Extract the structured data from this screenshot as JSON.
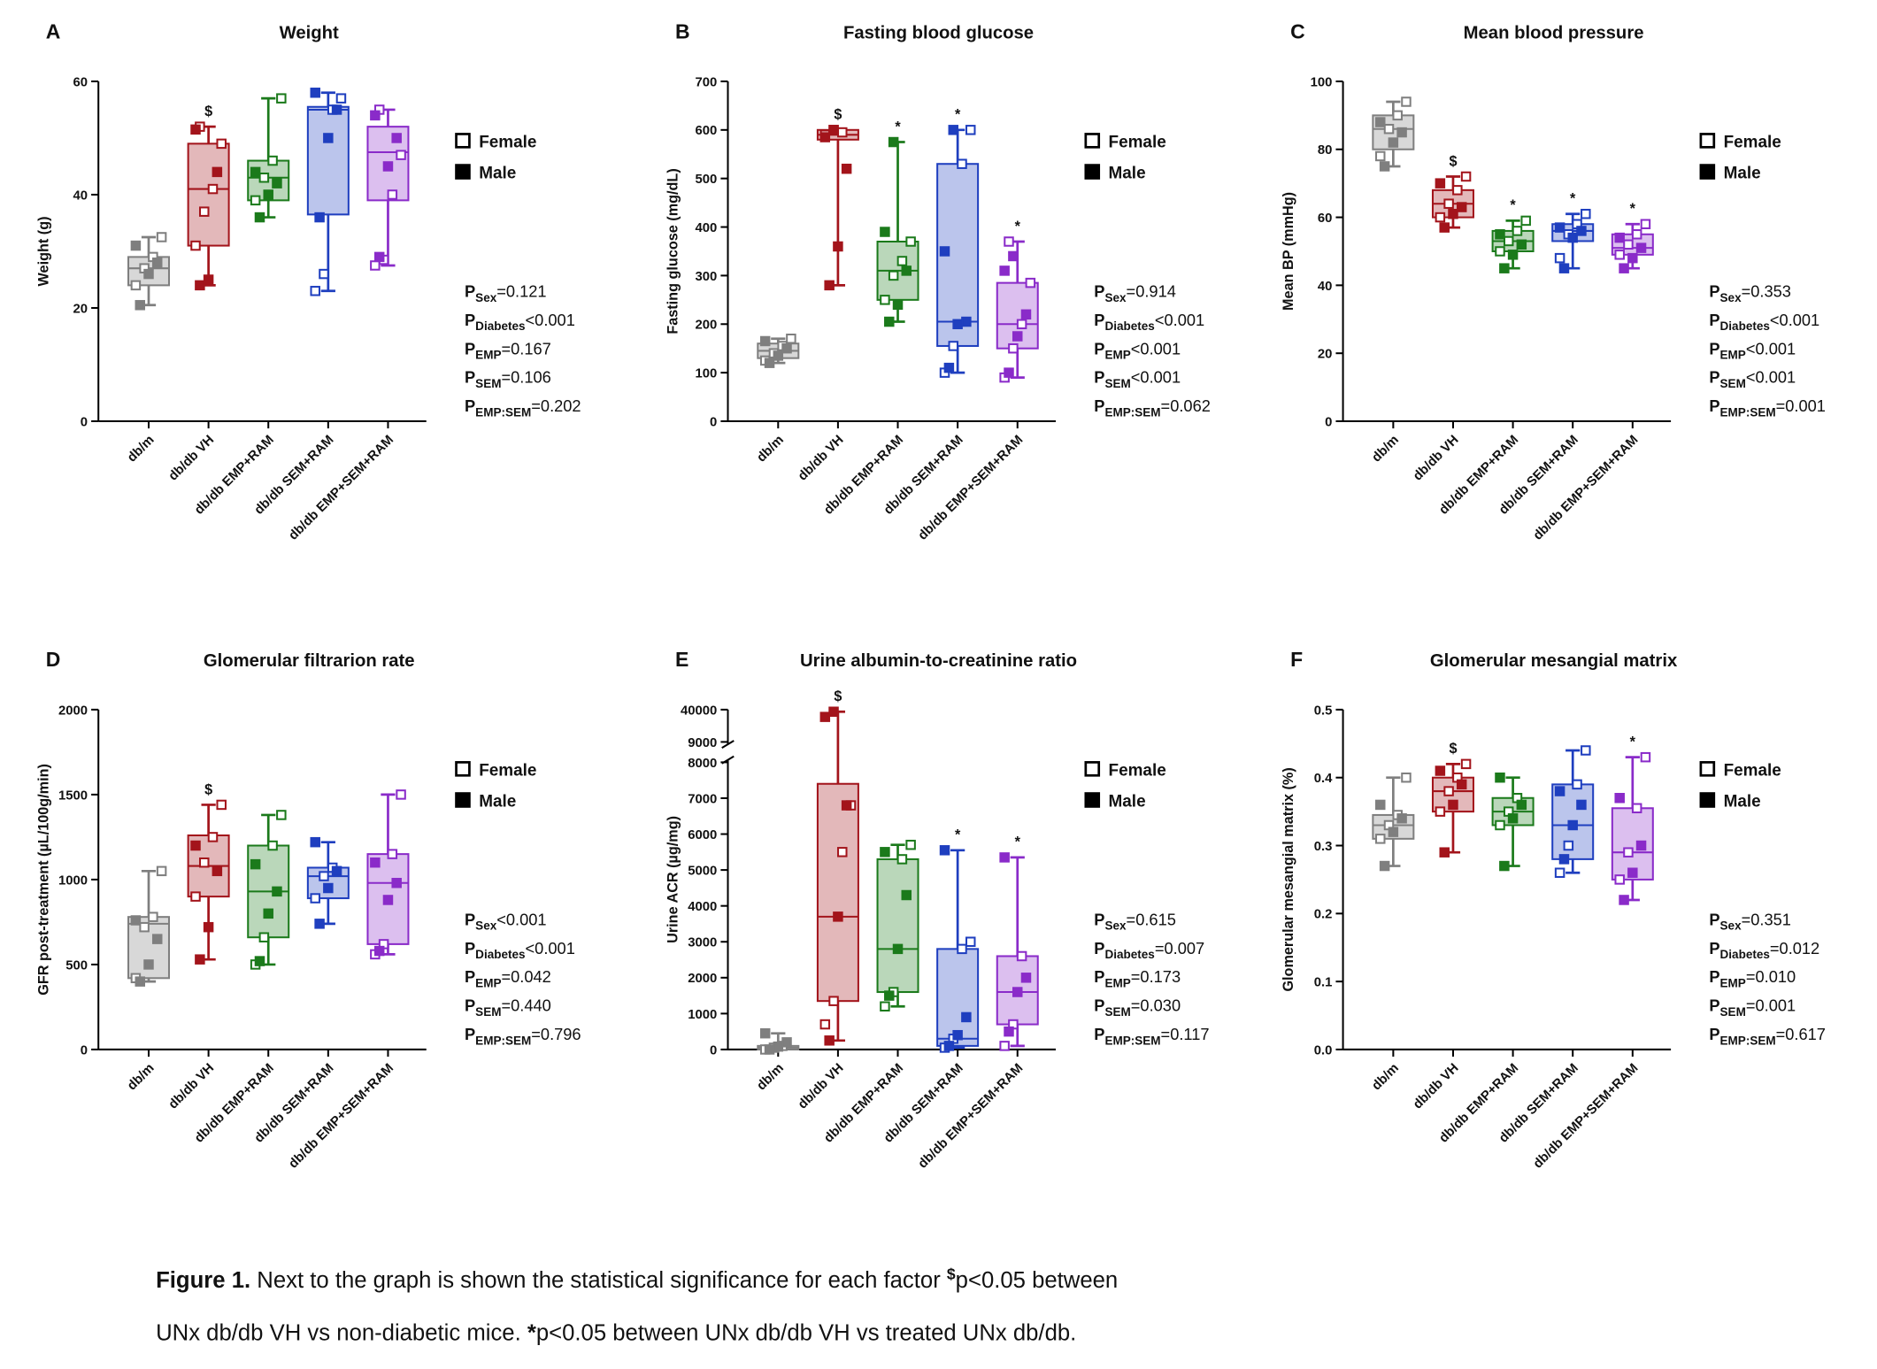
{
  "chart_data": [
    {
      "type": "box",
      "letter": "A",
      "title": "Weight",
      "ylabel": "Weight (g)",
      "ylim": [
        0,
        60
      ],
      "yticks": [
        0,
        20,
        40,
        60
      ],
      "categories": [
        "db/m",
        "db/db VH",
        "db/db EMP+RAM",
        "db/db SEM+RAM",
        "db/db EMP+SEM+RAM"
      ],
      "colors": [
        "#7f7f7f",
        "#a3141b",
        "#1b7a1b",
        "#1f3fbf",
        "#8a2bc9"
      ],
      "boxes": [
        {
          "min": 20.5,
          "q1": 24,
          "median": 27,
          "q3": 29,
          "max": 32.5
        },
        {
          "min": 24,
          "q1": 31,
          "median": 41,
          "q3": 49,
          "max": 52
        },
        {
          "min": 36,
          "q1": 39,
          "median": 43,
          "q3": 46,
          "max": 57
        },
        {
          "min": 23,
          "q1": 36.5,
          "median": 55,
          "q3": 55.5,
          "max": 58
        },
        {
          "min": 27.5,
          "q1": 39,
          "median": 47.5,
          "q3": 52,
          "max": 55
        }
      ],
      "female": [
        [
          24,
          27,
          29,
          32.5
        ],
        [
          31,
          37,
          41,
          49,
          52
        ],
        [
          39,
          43,
          46,
          57
        ],
        [
          23,
          26,
          55,
          57
        ],
        [
          27.5,
          28.5,
          40,
          47,
          55
        ]
      ],
      "male": [
        [
          20.5,
          26,
          28,
          31
        ],
        [
          24,
          25,
          44,
          51.5
        ],
        [
          36,
          40,
          42,
          44
        ],
        [
          36,
          50,
          55,
          58
        ],
        [
          29,
          45,
          50,
          54
        ]
      ],
      "markers": [
        null,
        "$",
        null,
        null,
        null
      ],
      "legend": [
        "Female",
        "Male"
      ],
      "stats": [
        {
          "factor": "Sex",
          "value": "=0.121"
        },
        {
          "factor": "Diabetes",
          "value": "<0.001"
        },
        {
          "factor": "EMP",
          "value": "=0.167"
        },
        {
          "factor": "SEM",
          "value": "=0.106"
        },
        {
          "factor": "EMP:SEM",
          "value": "=0.202"
        }
      ]
    },
    {
      "type": "box",
      "letter": "B",
      "title": "Fasting blood glucose",
      "ylabel": "Fasting glucose (mg/dL)",
      "ylim": [
        0,
        700
      ],
      "yticks": [
        0,
        100,
        200,
        300,
        400,
        500,
        600,
        700
      ],
      "categories": [
        "db/m",
        "db/db VH",
        "db/db EMP+RAM",
        "db/db SEM+RAM",
        "db/db EMP+SEM+RAM"
      ],
      "colors": [
        "#7f7f7f",
        "#a3141b",
        "#1b7a1b",
        "#1f3fbf",
        "#8a2bc9"
      ],
      "boxes": [
        {
          "min": 120,
          "q1": 130,
          "median": 145,
          "q3": 160,
          "max": 170
        },
        {
          "min": 280,
          "q1": 580,
          "median": 590,
          "q3": 600,
          "max": 600
        },
        {
          "min": 205,
          "q1": 250,
          "median": 310,
          "q3": 370,
          "max": 575
        },
        {
          "min": 100,
          "q1": 155,
          "median": 205,
          "q3": 530,
          "max": 600
        },
        {
          "min": 90,
          "q1": 150,
          "median": 200,
          "q3": 285,
          "max": 370
        }
      ],
      "female": [
        [
          125,
          140,
          155,
          170
        ],
        [
          590,
          600,
          595
        ],
        [
          250,
          300,
          330,
          370
        ],
        [
          100,
          155,
          530,
          600
        ],
        [
          90,
          150,
          200,
          285,
          370
        ]
      ],
      "male": [
        [
          120,
          135,
          150,
          165
        ],
        [
          280,
          360,
          520,
          585,
          600
        ],
        [
          205,
          240,
          310,
          390,
          575
        ],
        [
          110,
          200,
          205,
          350,
          600
        ],
        [
          100,
          175,
          220,
          310,
          340
        ]
      ],
      "markers": [
        null,
        "$",
        "*",
        "*",
        "*"
      ],
      "legend": [
        "Female",
        "Male"
      ],
      "stats": [
        {
          "factor": "Sex",
          "value": "=0.914"
        },
        {
          "factor": "Diabetes",
          "value": "<0.001"
        },
        {
          "factor": "EMP",
          "value": "<0.001"
        },
        {
          "factor": "SEM",
          "value": "<0.001"
        },
        {
          "factor": "EMP:SEM",
          "value": "=0.062"
        }
      ]
    },
    {
      "type": "box",
      "letter": "C",
      "title": "Mean blood pressure",
      "ylabel": "Mean BP (mmHg)",
      "ylim": [
        0,
        100
      ],
      "yticks": [
        0,
        20,
        40,
        60,
        80,
        100
      ],
      "categories": [
        "db/m",
        "db/db VH",
        "db/db EMP+RAM",
        "db/db SEM+RAM",
        "db/db EMP+SEM+RAM"
      ],
      "colors": [
        "#7f7f7f",
        "#a3141b",
        "#1b7a1b",
        "#1f3fbf",
        "#8a2bc9"
      ],
      "boxes": [
        {
          "min": 75,
          "q1": 80,
          "median": 86,
          "q3": 90,
          "max": 94
        },
        {
          "min": 57,
          "q1": 60,
          "median": 64,
          "q3": 68,
          "max": 72
        },
        {
          "min": 45,
          "q1": 50,
          "median": 53,
          "q3": 56,
          "max": 59
        },
        {
          "min": 45,
          "q1": 53,
          "median": 56,
          "q3": 58,
          "max": 61
        },
        {
          "min": 45,
          "q1": 49,
          "median": 51,
          "q3": 55,
          "max": 58
        }
      ],
      "female": [
        [
          78,
          86,
          90,
          94
        ],
        [
          60,
          64,
          68,
          72
        ],
        [
          50,
          53,
          56,
          59
        ],
        [
          48,
          55,
          58,
          61
        ],
        [
          49,
          52,
          55,
          58
        ]
      ],
      "male": [
        [
          75,
          82,
          85,
          88
        ],
        [
          57,
          61,
          63,
          70
        ],
        [
          45,
          49,
          52,
          55
        ],
        [
          45,
          54,
          56,
          57
        ],
        [
          45,
          48,
          51,
          54
        ]
      ],
      "markers": [
        null,
        "$",
        "*",
        "*",
        "*"
      ],
      "legend": [
        "Female",
        "Male"
      ],
      "stats": [
        {
          "factor": "Sex",
          "value": "=0.353"
        },
        {
          "factor": "Diabetes",
          "value": "<0.001"
        },
        {
          "factor": "EMP",
          "value": "<0.001"
        },
        {
          "factor": "SEM",
          "value": "<0.001"
        },
        {
          "factor": "EMP:SEM",
          "value": "=0.001"
        }
      ]
    },
    {
      "type": "box",
      "letter": "D",
      "title": "Glomerular filtrarion rate",
      "ylabel": "GFR post-treatment (µL/100g/min)",
      "ylim": [
        0,
        2000
      ],
      "yticks": [
        0,
        500,
        1000,
        1500,
        2000
      ],
      "categories": [
        "db/m",
        "db/db VH",
        "db/db EMP+RAM",
        "db/db SEM+RAM",
        "db/db EMP+SEM+RAM"
      ],
      "colors": [
        "#7f7f7f",
        "#a3141b",
        "#1b7a1b",
        "#1f3fbf",
        "#8a2bc9"
      ],
      "boxes": [
        {
          "min": 400,
          "q1": 420,
          "median": 740,
          "q3": 780,
          "max": 1050
        },
        {
          "min": 530,
          "q1": 900,
          "median": 1080,
          "q3": 1260,
          "max": 1440
        },
        {
          "min": 500,
          "q1": 660,
          "median": 930,
          "q3": 1200,
          "max": 1380
        },
        {
          "min": 740,
          "q1": 890,
          "median": 1020,
          "q3": 1070,
          "max": 1220
        },
        {
          "min": 560,
          "q1": 620,
          "median": 980,
          "q3": 1150,
          "max": 1500
        }
      ],
      "female": [
        [
          420,
          720,
          780,
          1050
        ],
        [
          900,
          1100,
          1250,
          1440
        ],
        [
          500,
          660,
          1200,
          1380
        ],
        [
          890,
          1020,
          1070
        ],
        [
          560,
          620,
          1150,
          1500
        ]
      ],
      "male": [
        [
          400,
          500,
          650,
          760
        ],
        [
          530,
          720,
          1050,
          1200
        ],
        [
          520,
          800,
          930,
          1090
        ],
        [
          740,
          950,
          1050,
          1220
        ],
        [
          580,
          880,
          980,
          1100
        ]
      ],
      "markers": [
        null,
        "$",
        null,
        null,
        null
      ],
      "legend": [
        "Female",
        "Male"
      ],
      "stats": [
        {
          "factor": "Sex",
          "value": "<0.001"
        },
        {
          "factor": "Diabetes",
          "value": "<0.001"
        },
        {
          "factor": "EMP",
          "value": "=0.042"
        },
        {
          "factor": "SEM",
          "value": "=0.440"
        },
        {
          "factor": "EMP:SEM",
          "value": "=0.796"
        }
      ]
    },
    {
      "type": "box",
      "letter": "E",
      "title": "Urine albumin-to-creatinine ratio",
      "ylabel": "Urine ACR (µg/mg)",
      "ylim": [
        0,
        40000
      ],
      "ybreak": [
        8000,
        9000
      ],
      "yticks": [
        0,
        1000,
        2000,
        3000,
        4000,
        5000,
        6000,
        7000,
        8000,
        9000,
        40000
      ],
      "categories": [
        "db/m",
        "db/db VH",
        "db/db EMP+RAM",
        "db/db SEM+RAM",
        "db/db EMP+SEM+RAM"
      ],
      "colors": [
        "#7f7f7f",
        "#a3141b",
        "#1b7a1b",
        "#1f3fbf",
        "#8a2bc9"
      ],
      "boxes": [
        {
          "min": 0,
          "q1": 0,
          "median": 50,
          "q3": 100,
          "max": 450
        },
        {
          "min": 250,
          "q1": 1350,
          "median": 3700,
          "q3": 7400,
          "max": 38000
        },
        {
          "min": 1200,
          "q1": 1600,
          "median": 2800,
          "q3": 5300,
          "max": 5700
        },
        {
          "min": 50,
          "q1": 100,
          "median": 300,
          "q3": 2800,
          "max": 5550
        },
        {
          "min": 100,
          "q1": 700,
          "median": 1600,
          "q3": 2600,
          "max": 5350
        }
      ],
      "female": [
        [
          0,
          50,
          100
        ],
        [
          700,
          1350,
          5500,
          6800
        ],
        [
          1200,
          1600,
          5300,
          5700
        ],
        [
          50,
          300,
          2800,
          3000
        ],
        [
          100,
          700,
          2600
        ]
      ],
      "male": [
        [
          0,
          80,
          200,
          450
        ],
        [
          250,
          3700,
          6800,
          33000,
          38000
        ],
        [
          1500,
          2800,
          4300,
          5500
        ],
        [
          100,
          400,
          900,
          5550
        ],
        [
          500,
          1600,
          2000,
          5350
        ]
      ],
      "markers": [
        null,
        "$",
        null,
        "*",
        "*"
      ],
      "legend": [
        "Female",
        "Male"
      ],
      "stats": [
        {
          "factor": "Sex",
          "value": "=0.615"
        },
        {
          "factor": "Diabetes",
          "value": "=0.007"
        },
        {
          "factor": "EMP",
          "value": "=0.173"
        },
        {
          "factor": "SEM",
          "value": "=0.030"
        },
        {
          "factor": "EMP:SEM",
          "value": "=0.117"
        }
      ]
    },
    {
      "type": "box",
      "letter": "F",
      "title": "Glomerular mesangial matrix",
      "ylabel": "Glomerular mesangial matrix (%)",
      "ylim": [
        0,
        0.5
      ],
      "yticks": [
        {
          "value": 0,
          "label": "0.0"
        },
        0.1,
        0.2,
        0.3,
        0.4,
        0.5
      ],
      "categories": [
        "db/m",
        "db/db VH",
        "db/db EMP+RAM",
        "db/db SEM+RAM",
        "db/db EMP+SEM+RAM"
      ],
      "colors": [
        "#7f7f7f",
        "#a3141b",
        "#1b7a1b",
        "#1f3fbf",
        "#8a2bc9"
      ],
      "boxes": [
        {
          "min": 0.27,
          "q1": 0.31,
          "median": 0.33,
          "q3": 0.345,
          "max": 0.4
        },
        {
          "min": 0.29,
          "q1": 0.35,
          "median": 0.38,
          "q3": 0.4,
          "max": 0.42
        },
        {
          "min": 0.27,
          "q1": 0.33,
          "median": 0.35,
          "q3": 0.37,
          "max": 0.4
        },
        {
          "min": 0.26,
          "q1": 0.28,
          "median": 0.33,
          "q3": 0.39,
          "max": 0.44
        },
        {
          "min": 0.22,
          "q1": 0.25,
          "median": 0.29,
          "q3": 0.355,
          "max": 0.43
        }
      ],
      "female": [
        [
          0.31,
          0.33,
          0.345,
          0.4
        ],
        [
          0.35,
          0.38,
          0.4,
          0.42
        ],
        [
          0.33,
          0.35,
          0.37
        ],
        [
          0.26,
          0.3,
          0.39,
          0.44
        ],
        [
          0.25,
          0.29,
          0.355,
          0.43
        ]
      ],
      "male": [
        [
          0.27,
          0.32,
          0.34,
          0.36
        ],
        [
          0.29,
          0.36,
          0.39,
          0.41
        ],
        [
          0.27,
          0.34,
          0.36,
          0.4
        ],
        [
          0.28,
          0.33,
          0.36,
          0.38
        ],
        [
          0.22,
          0.26,
          0.3,
          0.37
        ]
      ],
      "markers": [
        null,
        "$",
        null,
        null,
        "*"
      ],
      "legend": [
        "Female",
        "Male"
      ],
      "stats": [
        {
          "factor": "Sex",
          "value": "=0.351"
        },
        {
          "factor": "Diabetes",
          "value": "=0.012"
        },
        {
          "factor": "EMP",
          "value": "=0.010"
        },
        {
          "factor": "SEM",
          "value": "=0.001"
        },
        {
          "factor": "EMP:SEM",
          "value": "=0.617"
        }
      ]
    }
  ],
  "stat_symbol": "P",
  "caption": {
    "label": "Figure 1.",
    "line1": " Next to the graph is shown the statistical significance for each factor ",
    "dollar": "$",
    "line1b": "p<0.05 between",
    "line2a": "UNx db/db VH vs non-diabetic mice. ",
    "star": "*",
    "line2b": "p<0.05 between UNx db/db VH vs treated UNx db/db."
  }
}
